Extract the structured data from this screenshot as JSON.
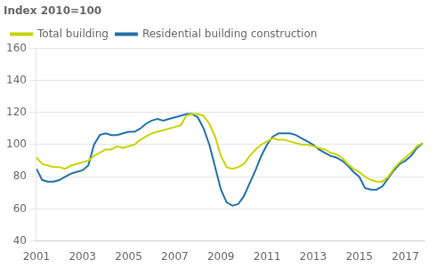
{
  "chart_data": {
    "type": "line",
    "title": "Index 2010=100",
    "x": [
      2001.0,
      2001.25,
      2001.5,
      2001.75,
      2002.0,
      2002.25,
      2002.5,
      2002.75,
      2003.0,
      2003.25,
      2003.5,
      2003.75,
      2004.0,
      2004.25,
      2004.5,
      2004.75,
      2005.0,
      2005.25,
      2005.5,
      2005.75,
      2006.0,
      2006.25,
      2006.5,
      2006.75,
      2007.0,
      2007.25,
      2007.5,
      2007.75,
      2008.0,
      2008.25,
      2008.5,
      2008.75,
      2009.0,
      2009.25,
      2009.5,
      2009.75,
      2010.0,
      2010.25,
      2010.5,
      2010.75,
      2011.0,
      2011.25,
      2011.5,
      2011.75,
      2012.0,
      2012.25,
      2012.5,
      2012.75,
      2013.0,
      2013.25,
      2013.5,
      2013.75,
      2014.0,
      2014.25,
      2014.5,
      2014.75,
      2015.0,
      2015.25,
      2015.5,
      2015.75,
      2016.0,
      2016.25,
      2016.5,
      2016.75,
      2017.0,
      2017.25,
      2017.5,
      2017.75
    ],
    "series": [
      {
        "name": "Total building",
        "color": "#c8d400",
        "values": [
          92,
          88,
          87,
          86,
          86,
          85,
          87,
          88,
          89,
          90,
          93,
          95,
          97,
          97,
          99,
          98,
          99,
          100,
          103,
          105,
          107,
          108,
          109,
          110,
          111,
          112,
          118,
          119,
          119,
          118,
          113,
          105,
          93,
          86,
          85,
          86,
          88,
          93,
          97,
          100,
          102,
          104,
          103,
          103,
          102,
          101,
          100,
          100,
          99,
          98,
          97,
          95,
          94,
          92,
          88,
          85,
          83,
          80,
          78,
          77,
          77,
          80,
          85,
          89,
          92,
          95,
          99,
          101
        ]
      },
      {
        "name": "Residential building construction",
        "color": "#2070a8",
        "values": [
          85,
          78,
          77,
          77,
          78,
          80,
          82,
          83,
          84,
          87,
          100,
          106,
          107,
          106,
          106,
          107,
          108,
          108,
          110,
          113,
          115,
          116,
          115,
          116,
          117,
          118,
          119,
          119,
          117,
          110,
          100,
          86,
          72,
          64,
          62,
          63,
          68,
          76,
          84,
          93,
          100,
          105,
          107,
          107,
          107,
          106,
          104,
          102,
          100,
          97,
          95,
          93,
          92,
          90,
          87,
          83,
          80,
          73,
          72,
          72,
          74,
          79,
          84,
          88,
          90,
          93,
          98,
          101
        ]
      }
    ],
    "xlim": [
      2001.0,
      2017.83
    ],
    "xticks": [
      2001,
      2003,
      2005,
      2007,
      2009,
      2011,
      2013,
      2015,
      2017
    ],
    "ylim": [
      40,
      160
    ],
    "yticks": [
      40,
      60,
      80,
      100,
      120,
      140,
      160
    ],
    "grid": "y",
    "legend": "upper left"
  }
}
